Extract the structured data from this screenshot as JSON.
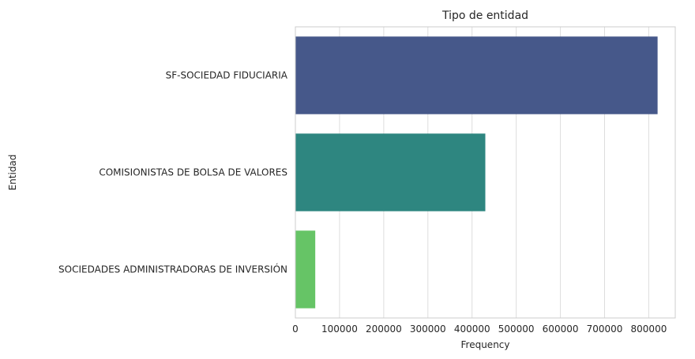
{
  "chart_data": {
    "type": "bar",
    "orientation": "horizontal",
    "title": "Tipo de entidad",
    "xlabel": "Frequency",
    "ylabel": "Entidad",
    "categories": [
      "SF-SOCIEDAD FIDUCIARIA",
      "COMISIONISTAS DE BOLSA DE VALORES",
      "SOCIEDADES ADMINISTRADORAS DE INVERSIÓN"
    ],
    "values": [
      820000,
      430000,
      45000
    ],
    "colors": [
      "#46588a",
      "#2e8680",
      "#66c466"
    ],
    "xlim": [
      0,
      860000
    ],
    "xticks": [
      0,
      100000,
      200000,
      300000,
      400000,
      500000,
      600000,
      700000,
      800000
    ],
    "xtick_labels": [
      "0",
      "100000",
      "200000",
      "300000",
      "400000",
      "500000",
      "600000",
      "700000",
      "800000"
    ],
    "grid": "vertical",
    "legend": "none"
  }
}
